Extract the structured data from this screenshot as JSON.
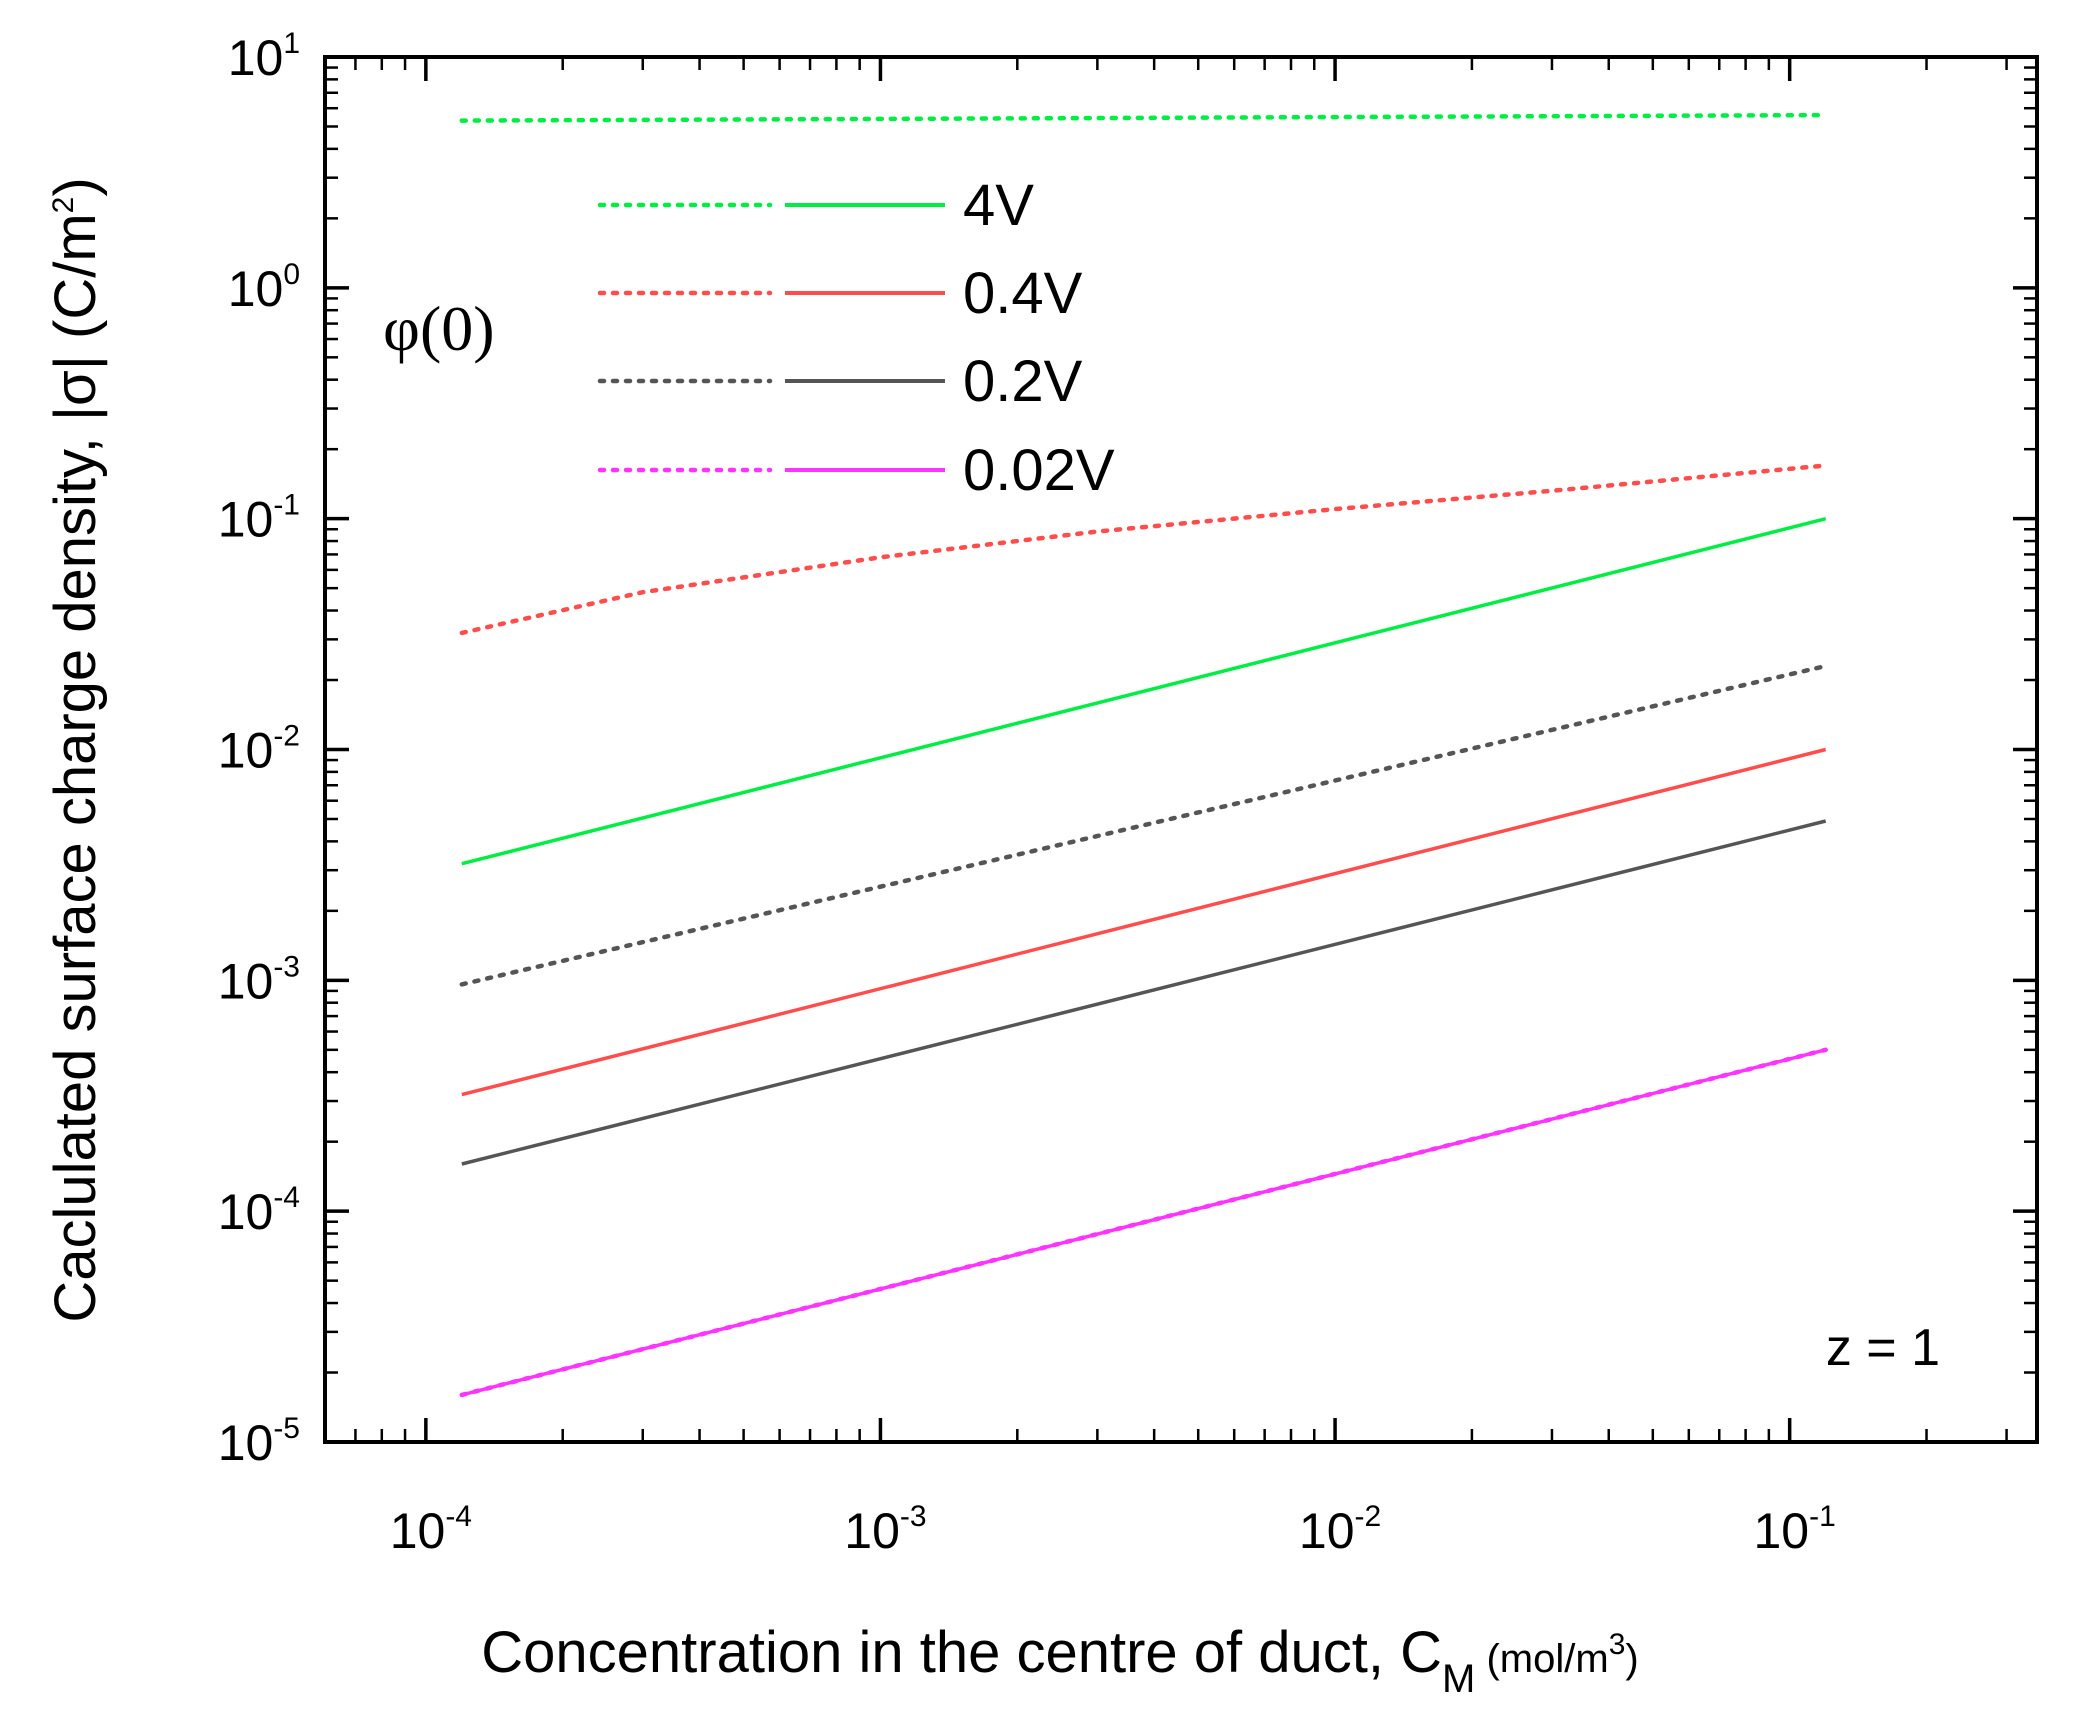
{
  "chart_data": {
    "type": "line",
    "scale": {
      "x": "log",
      "y": "log"
    },
    "xlabel": "Concentration in the centre of duct, C",
    "xlabel_sub": "M",
    "xlabel_unit_pre": " (mol/m",
    "xlabel_unit_sup": "3",
    "xlabel_unit_post": ")",
    "ylabel": "Caclulated surface charge density, |σ| (C/m",
    "ylabel_sup": "2",
    "ylabel_post": ")",
    "xlim": [
      6e-05,
      0.35
    ],
    "ylim": [
      1e-05,
      10
    ],
    "x_major_ticks": [
      {
        "value": 0.0001,
        "base": "10",
        "exp": "-4"
      },
      {
        "value": 0.001,
        "base": "10",
        "exp": "-3"
      },
      {
        "value": 0.01,
        "base": "10",
        "exp": "-2"
      },
      {
        "value": 0.1,
        "base": "10",
        "exp": "-1"
      }
    ],
    "y_major_ticks": [
      {
        "value": 1e-05,
        "base": "10",
        "exp": "-5"
      },
      {
        "value": 0.0001,
        "base": "10",
        "exp": "-4"
      },
      {
        "value": 0.001,
        "base": "10",
        "exp": "-3"
      },
      {
        "value": 0.01,
        "base": "10",
        "exp": "-2"
      },
      {
        "value": 0.1,
        "base": "10",
        "exp": "-1"
      },
      {
        "value": 1,
        "base": "10",
        "exp": "0"
      },
      {
        "value": 10,
        "base": "10",
        "exp": "1"
      }
    ],
    "legend": {
      "title": "φ(0)",
      "entries": [
        {
          "label": "4V",
          "color": "#00ee44"
        },
        {
          "label": "0.4V",
          "color": "#ff4d4d"
        },
        {
          "label": "0.2V",
          "color": "#555555"
        },
        {
          "label": "0.02V",
          "color": "#ff33ff"
        }
      ]
    },
    "annotation": "z = 1",
    "series": [
      {
        "name": "4V (dotted)",
        "potential": "4V",
        "style": "dotted",
        "color": "#00ee44",
        "x": [
          0.00012,
          0.12
        ],
        "y": [
          5.3,
          5.6
        ]
      },
      {
        "name": "4V (solid)",
        "potential": "4V",
        "style": "solid",
        "color": "#00ee44",
        "x": [
          0.00012,
          0.12
        ],
        "y": [
          0.0032,
          0.1
        ]
      },
      {
        "name": "0.4V (dotted)",
        "potential": "0.4V",
        "style": "dotted",
        "color": "#ff4d4d",
        "x": [
          0.00012,
          0.0003,
          0.001,
          0.003,
          0.01,
          0.03,
          0.12
        ],
        "y": [
          0.032,
          0.048,
          0.068,
          0.088,
          0.11,
          0.132,
          0.17
        ]
      },
      {
        "name": "0.4V (solid)",
        "potential": "0.4V",
        "style": "solid",
        "color": "#ff4d4d",
        "x": [
          0.00012,
          0.12
        ],
        "y": [
          0.00032,
          0.01
        ]
      },
      {
        "name": "0.2V (dotted)",
        "potential": "0.2V",
        "style": "dotted",
        "color": "#555555",
        "x": [
          0.00012,
          0.12
        ],
        "y": [
          0.00096,
          0.023
        ]
      },
      {
        "name": "0.2V (solid)",
        "potential": "0.2V",
        "style": "solid",
        "color": "#555555",
        "x": [
          0.00012,
          0.12
        ],
        "y": [
          0.00016,
          0.0049
        ]
      },
      {
        "name": "0.02V (dotted)",
        "potential": "0.02V",
        "style": "dotted",
        "color": "#ff33ff",
        "x": [
          0.00012,
          0.12
        ],
        "y": [
          1.6e-05,
          0.0005
        ]
      },
      {
        "name": "0.02V (solid)",
        "potential": "0.02V",
        "style": "solid",
        "color": "#ff33ff",
        "x": [
          0.00012,
          0.12
        ],
        "y": [
          1.6e-05,
          0.0005
        ]
      }
    ]
  }
}
